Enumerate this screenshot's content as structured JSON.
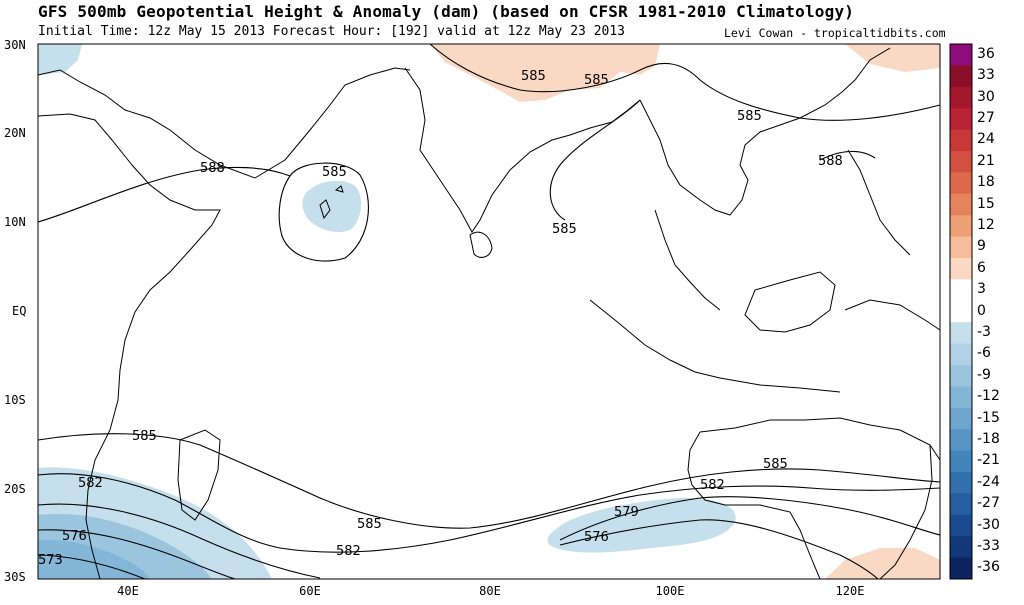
{
  "header": {
    "title": "GFS 500mb Geopotential Height & Anomaly (dam) (based on CFSR 1981-2010 Climatology)",
    "subtitle": "Initial Time: 12z May 15 2013 Forecast Hour: [192] valid at 12z May 23 2013",
    "credit": "Levi Cowan - tropicaltidbits.com"
  },
  "axes": {
    "lat_labels": [
      "30N",
      "20N",
      "10N",
      "EQ",
      "10S",
      "20S",
      "30S"
    ],
    "lon_labels": [
      "40E",
      "60E",
      "80E",
      "100E",
      "120E"
    ]
  },
  "colorbar": {
    "labels": [
      "36",
      "33",
      "30",
      "27",
      "24",
      "21",
      "18",
      "15",
      "12",
      "9",
      "6",
      "3",
      "0",
      "-3",
      "-6",
      "-9",
      "-12",
      "-15",
      "-18",
      "-21",
      "-24",
      "-27",
      "-30",
      "-33",
      "-36"
    ],
    "colors": [
      "#8e0c7c",
      "#8b0f2a",
      "#a4182e",
      "#b82233",
      "#c83838",
      "#d2503f",
      "#dc694c",
      "#e5835e",
      "#eea076",
      "#f5bd9a",
      "#f9d9c3",
      "#ffffff",
      "#ffffff",
      "#c6dfec",
      "#b1d2e6",
      "#9bc5df",
      "#84b6d7",
      "#6ea6ce",
      "#5895c4",
      "#4384b9",
      "#3371ad",
      "#265e9f",
      "#1b4b8e",
      "#13387a",
      "#0c2560"
    ]
  },
  "contour_labels": [
    {
      "text": "588"
    },
    {
      "text": "585"
    },
    {
      "text": "585"
    },
    {
      "text": "585"
    },
    {
      "text": "585"
    },
    {
      "text": "585"
    },
    {
      "text": "588"
    },
    {
      "text": "585"
    },
    {
      "text": "585"
    },
    {
      "text": "585"
    },
    {
      "text": "582"
    },
    {
      "text": "576"
    },
    {
      "text": "573"
    },
    {
      "text": "585"
    },
    {
      "text": "582"
    },
    {
      "text": "579"
    },
    {
      "text": "576"
    },
    {
      "text": "582"
    }
  ]
}
